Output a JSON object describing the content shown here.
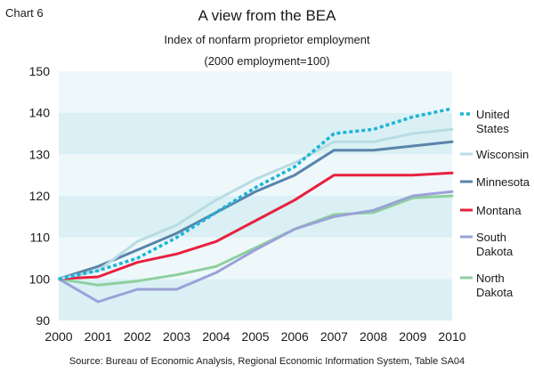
{
  "chart_label": "Chart 6",
  "source": "Source: Bureau of Economic Analysis, Regional Economic Information System, Table SA04",
  "chart_data": {
    "type": "line",
    "title": "A view from the BEA",
    "subtitle": "Index of nonfarm proprietor employment",
    "subtitle2": "(2000 employment=100)",
    "xlabel": "",
    "ylabel": "",
    "x": [
      2000,
      2001,
      2002,
      2003,
      2004,
      2005,
      2006,
      2007,
      2008,
      2009,
      2010
    ],
    "ylim": [
      90,
      150
    ],
    "yticks": [
      90,
      100,
      110,
      120,
      130,
      140,
      150
    ],
    "grid": "alternating horizontal bands",
    "legend_position": "right",
    "series": [
      {
        "name": "United States",
        "legend_lines": [
          "United",
          "States"
        ],
        "color": "#1cb5d8",
        "dashed": true,
        "values": [
          100,
          102,
          105,
          110,
          116,
          122,
          127,
          135,
          136,
          139,
          141
        ]
      },
      {
        "name": "Wisconsin",
        "legend_lines": [
          "Wisconsin"
        ],
        "color": "#b9dce4",
        "dashed": false,
        "values": [
          100,
          102,
          109,
          113,
          119,
          124,
          128,
          133,
          133,
          135,
          136
        ]
      },
      {
        "name": "Minnesota",
        "legend_lines": [
          "Minnesota"
        ],
        "color": "#5a84aa",
        "dashed": false,
        "values": [
          100,
          103,
          107,
          111,
          116,
          121,
          125,
          131,
          131,
          132,
          133
        ]
      },
      {
        "name": "Montana",
        "legend_lines": [
          "Montana"
        ],
        "color": "#e8203f",
        "dashed": false,
        "values": [
          100,
          100.5,
          104,
          106,
          109,
          114,
          119,
          125,
          125,
          125,
          125.5
        ]
      },
      {
        "name": "South Dakota",
        "legend_lines": [
          "South",
          "Dakota"
        ],
        "color": "#9aa2d8",
        "dashed": false,
        "values": [
          100,
          94.5,
          97.5,
          97.5,
          101.5,
          107,
          112,
          115,
          116.5,
          120,
          121
        ]
      },
      {
        "name": "North Dakota",
        "legend_lines": [
          "North",
          "Dakota"
        ],
        "color": "#8ecf9e",
        "dashed": false,
        "values": [
          100,
          98.5,
          99.5,
          101,
          103,
          107.5,
          112,
          115.5,
          116,
          119.5,
          120
        ]
      }
    ]
  }
}
